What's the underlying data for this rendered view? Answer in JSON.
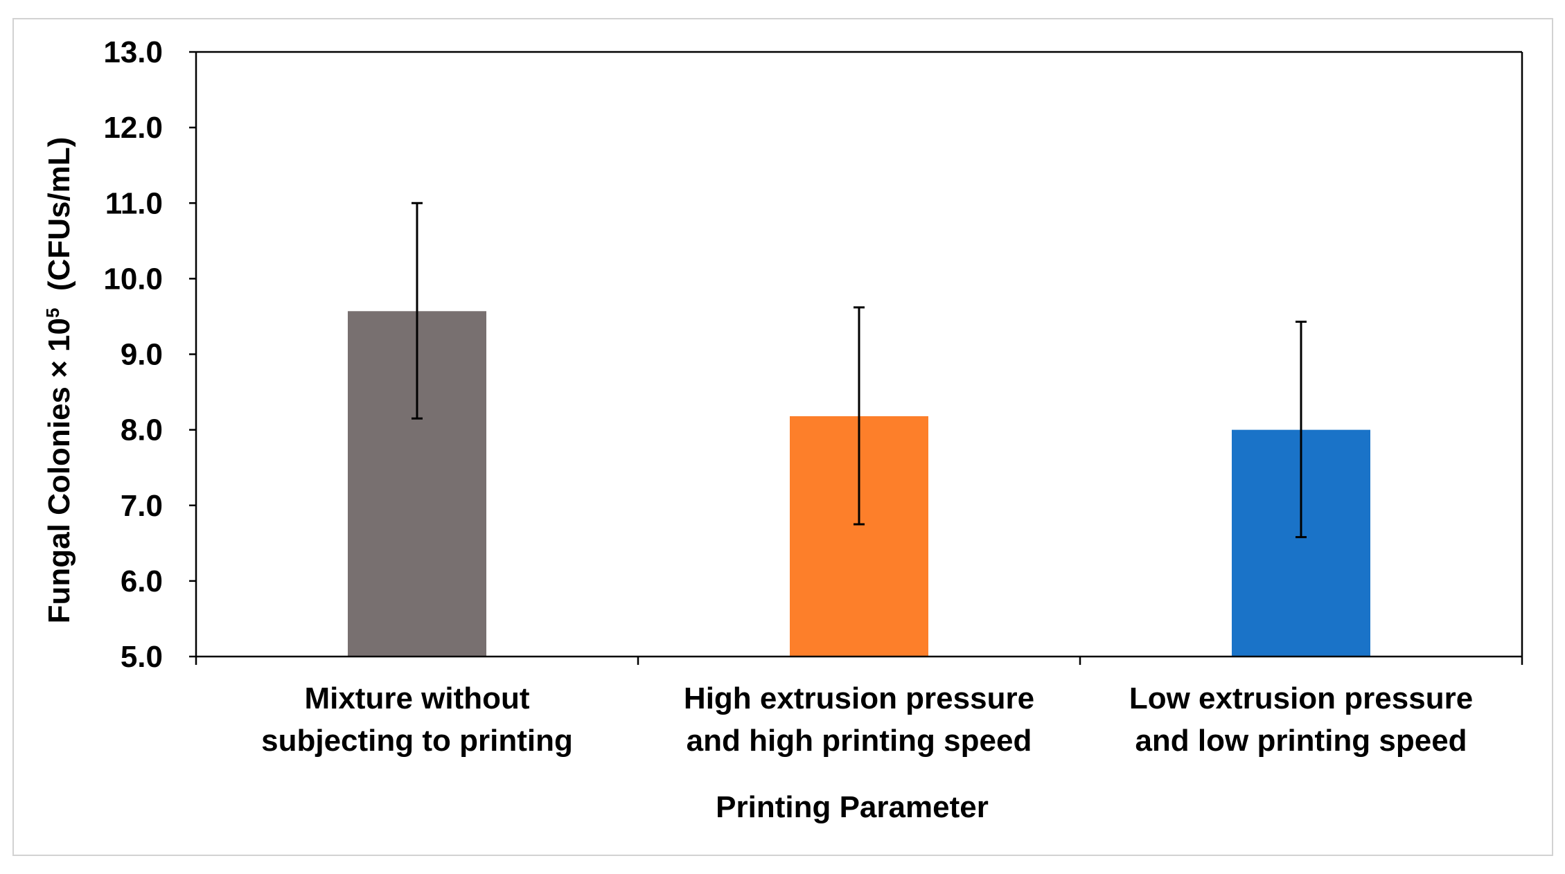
{
  "chart_data": {
    "type": "bar",
    "title": "",
    "categories": [
      [
        "Mixture without",
        "subjecting to printing"
      ],
      [
        "High extrusion pressure",
        "and high printing speed"
      ],
      [
        "Low extrusion pressure",
        "and low printing speed"
      ]
    ],
    "values": [
      9.57,
      8.18,
      8.0
    ],
    "error_low": [
      8.15,
      6.75,
      6.58
    ],
    "error_high": [
      11.0,
      9.62,
      9.43
    ],
    "colors": [
      "#787070",
      "#fd7f2a",
      "#1a73c8"
    ],
    "xlabel": "Printing Parameter",
    "ylabel": {
      "prefix": "Fungal Colonies × 10",
      "superscript": "5",
      "suffix": "  (CFUs/mL)"
    },
    "ylim": [
      5.0,
      13.0
    ],
    "yticks": [
      "5.0",
      "6.0",
      "7.0",
      "8.0",
      "9.0",
      "10.0",
      "11.0",
      "12.0",
      "13.0"
    ],
    "grid": false,
    "legend": "none"
  }
}
